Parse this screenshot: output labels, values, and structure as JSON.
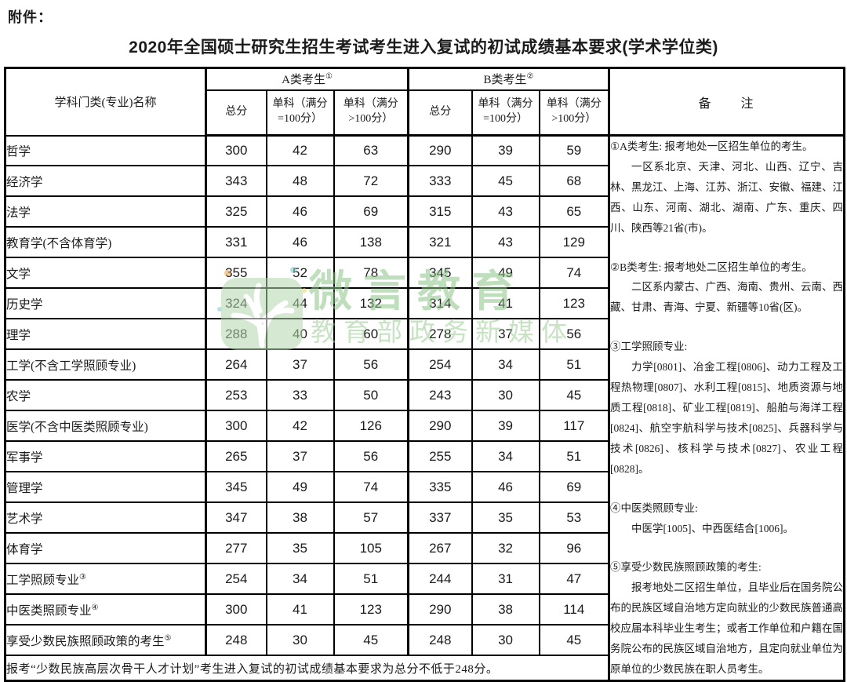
{
  "page": {
    "attachment_label": "附件：",
    "title": "2020年全国硕士研究生招生考试考生进入复试的初试成绩基本要求(学术学位类)"
  },
  "table": {
    "headers": {
      "subject": "学科门类(专业)名称",
      "group_a": "A类考生",
      "group_a_sup": "①",
      "group_b": "B类考生",
      "group_b_sup": "②",
      "total": "总分",
      "single_eq100": "单科（满分\n=100分）",
      "single_gt100": "单科（满分\n>100分）",
      "remark": "备      注"
    },
    "rows": [
      {
        "name": "哲学",
        "sup": "",
        "a": [
          "300",
          "42",
          "63"
        ],
        "b": [
          "290",
          "39",
          "59"
        ]
      },
      {
        "name": "经济学",
        "sup": "",
        "a": [
          "343",
          "48",
          "72"
        ],
        "b": [
          "333",
          "45",
          "68"
        ]
      },
      {
        "name": "法学",
        "sup": "",
        "a": [
          "325",
          "46",
          "69"
        ],
        "b": [
          "315",
          "43",
          "65"
        ]
      },
      {
        "name": "教育学(不含体育学)",
        "sup": "",
        "a": [
          "331",
          "46",
          "138"
        ],
        "b": [
          "321",
          "43",
          "129"
        ]
      },
      {
        "name": "文学",
        "sup": "",
        "a": [
          "355",
          "52",
          "78"
        ],
        "b": [
          "345",
          "49",
          "74"
        ]
      },
      {
        "name": "历史学",
        "sup": "",
        "a": [
          "324",
          "44",
          "132"
        ],
        "b": [
          "314",
          "41",
          "123"
        ]
      },
      {
        "name": "理学",
        "sup": "",
        "a": [
          "288",
          "40",
          "60"
        ],
        "b": [
          "278",
          "37",
          "56"
        ]
      },
      {
        "name": "工学(不含工学照顾专业)",
        "sup": "",
        "a": [
          "264",
          "37",
          "56"
        ],
        "b": [
          "254",
          "34",
          "51"
        ]
      },
      {
        "name": "农学",
        "sup": "",
        "a": [
          "253",
          "33",
          "50"
        ],
        "b": [
          "243",
          "30",
          "45"
        ]
      },
      {
        "name": "医学(不含中医类照顾专业)",
        "sup": "",
        "a": [
          "300",
          "42",
          "126"
        ],
        "b": [
          "290",
          "39",
          "117"
        ]
      },
      {
        "name": "军事学",
        "sup": "",
        "a": [
          "265",
          "37",
          "56"
        ],
        "b": [
          "255",
          "34",
          "51"
        ]
      },
      {
        "name": "管理学",
        "sup": "",
        "a": [
          "345",
          "49",
          "74"
        ],
        "b": [
          "335",
          "46",
          "69"
        ]
      },
      {
        "name": "艺术学",
        "sup": "",
        "a": [
          "347",
          "38",
          "57"
        ],
        "b": [
          "337",
          "35",
          "53"
        ]
      },
      {
        "name": "体育学",
        "sup": "",
        "a": [
          "277",
          "35",
          "105"
        ],
        "b": [
          "267",
          "32",
          "96"
        ]
      },
      {
        "name": "工学照顾专业",
        "sup": "③",
        "a": [
          "254",
          "34",
          "51"
        ],
        "b": [
          "244",
          "31",
          "47"
        ]
      },
      {
        "name": "中医类照顾专业",
        "sup": "④",
        "a": [
          "300",
          "41",
          "123"
        ],
        "b": [
          "290",
          "38",
          "114"
        ]
      },
      {
        "name": "享受少数民族照顾政策的考生",
        "sup": "⑤",
        "a": [
          "248",
          "30",
          "45"
        ],
        "b": [
          "248",
          "30",
          "45"
        ]
      }
    ],
    "remarks": [
      {
        "text": "①A类考生: 报考地处一区招生单位的考生。",
        "indent": false,
        "gap": false
      },
      {
        "text": "一区系北京、天津、河北、山西、辽宁、吉林、黑龙江、上海、江苏、浙江、安徽、福建、江西、山东、河南、湖北、湖南、广东、重庆、四川、陕西等21省(市)。",
        "indent": true,
        "gap": false
      },
      {
        "text": "②B类考生: 报考地处二区招生单位的考生。",
        "indent": false,
        "gap": true
      },
      {
        "text": "二区系内蒙古、广西、海南、贵州、云南、西藏、甘肃、青海、宁夏、新疆等10省(区)。",
        "indent": true,
        "gap": false
      },
      {
        "text": "③工学照顾专业:",
        "indent": false,
        "gap": true
      },
      {
        "text": "力学[0801]、冶金工程[0806]、动力工程及工程热物理[0807]、水利工程[0815]、地质资源与地质工程[0818]、矿业工程[0819]、船舶与海洋工程[0824]、航空宇航科学与技术[0825]、兵器科学与技术[0826]、核科学与技术[0827]、农业工程[0828]。",
        "indent": true,
        "gap": false
      },
      {
        "text": "④中医类照顾专业:",
        "indent": false,
        "gap": true
      },
      {
        "text": "中医学[1005]、中西医结合[1006]。",
        "indent": true,
        "gap": false
      },
      {
        "text": "⑤享受少数民族照顾政策的考生:",
        "indent": false,
        "gap": true
      },
      {
        "text": "报考地处二区招生单位，且毕业后在国务院公布的民族区域自治地方定向就业的少数民族普通高校应届本科毕业生考生；或者工作单位和户籍在国务院公布的民族区域自治地方，且定向就业单位为原单位的少数民族在职人员考生。",
        "indent": true,
        "gap": false
      }
    ],
    "footer": "报考“少数民族高层次骨干人才计划”考生进入复试的初试成绩基本要求为总分不低于248分。"
  },
  "watermark": {
    "main_text": "微言教育",
    "sub_text": "教育部政务新媒体",
    "main_color": "#8cc487",
    "sub_color": "#9ccd94",
    "logo": "sprout-leaf-icon"
  }
}
